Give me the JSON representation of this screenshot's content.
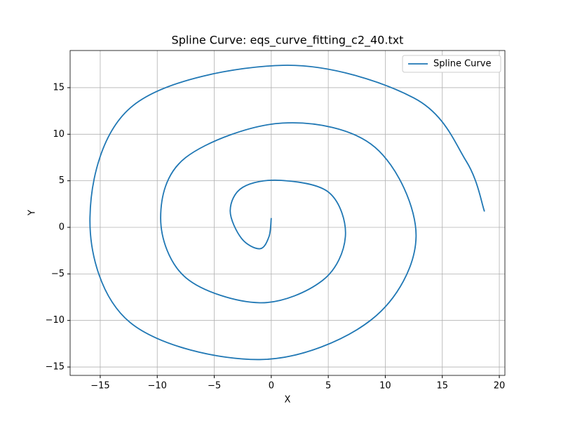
{
  "chart_data": {
    "type": "line",
    "title": "Spline Curve: eqs_curve_fitting_c2_40.txt",
    "xlabel": "X",
    "ylabel": "Y",
    "series": [
      {
        "name": "Spline Curve",
        "color": "#1f77b4",
        "x": [
          0,
          -0.2,
          -1,
          -2.6,
          -3.6,
          -2.5,
          0.8,
          5.1,
          6.5,
          4.5,
          -1,
          -7.5,
          -9.7,
          -7.5,
          1,
          9.1,
          12.7,
          8.8,
          -1,
          -12.4,
          -15.9,
          -12.1,
          1,
          12.5,
          17.1,
          18.7
        ],
        "y": [
          1,
          -1,
          -2.3,
          -1.2,
          1.8,
          4.3,
          5.05,
          3.7,
          -1,
          -5.7,
          -8.1,
          -5.4,
          1,
          7.5,
          11.2,
          8.6,
          -1,
          -9.9,
          -14.2,
          -10.2,
          1,
          13.1,
          17.4,
          13.9,
          7.1,
          1.7
        ]
      }
    ],
    "xlim": [
      -17.64,
      20.49
    ],
    "ylim": [
      -15.9,
      18.99
    ],
    "xticks": [
      {
        "value": -15,
        "label": "−15"
      },
      {
        "value": -10,
        "label": "−10"
      },
      {
        "value": -5,
        "label": "−5"
      },
      0,
      5,
      10,
      15,
      20
    ],
    "yticks": [
      {
        "value": -15,
        "label": "−15"
      },
      {
        "value": -10,
        "label": "−10"
      },
      {
        "value": -5,
        "label": "−5"
      },
      0,
      5,
      10,
      15
    ],
    "grid": true,
    "legend": "upper-right"
  }
}
